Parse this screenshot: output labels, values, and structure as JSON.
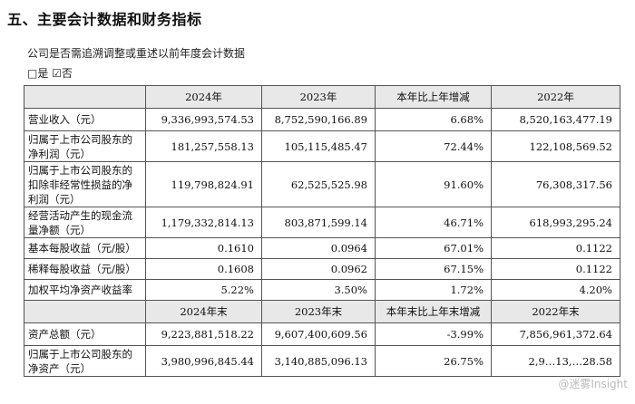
{
  "heading": "五、主要会计数据和财务指标",
  "question": "公司是否需追溯调整或重述以前年度会计数据",
  "answer": "□是 ☑否",
  "table1": {
    "headers": [
      "",
      "2024年",
      "2023年",
      "本年比上年增减",
      "2022年"
    ],
    "rows": [
      {
        "label": "营业收入（元）",
        "v2024": "9,336,993,574.53",
        "v2023": "8,752,590,166.89",
        "change": "6.68%",
        "v2022": "8,520,163,477.19"
      },
      {
        "label": "归属于上市公司股东的净利润（元）",
        "v2024": "181,257,558.13",
        "v2023": "105,115,485.47",
        "change": "72.44%",
        "v2022": "122,108,569.52"
      },
      {
        "label": "归属于上市公司股东的扣除非经常性损益的净利润（元）",
        "v2024": "119,798,824.91",
        "v2023": "62,525,525.98",
        "change": "91.60%",
        "v2022": "76,308,317.56"
      },
      {
        "label": "经营活动产生的现金流量净额（元）",
        "v2024": "1,179,332,814.13",
        "v2023": "803,871,599.14",
        "change": "46.71%",
        "v2022": "618,993,295.24"
      },
      {
        "label": "基本每股收益（元/股）",
        "v2024": "0.1610",
        "v2023": "0.0964",
        "change": "67.01%",
        "v2022": "0.1122"
      },
      {
        "label": "稀释每股收益（元/股）",
        "v2024": "0.1608",
        "v2023": "0.0962",
        "change": "67.15%",
        "v2022": "0.1122"
      },
      {
        "label": "加权平均净资产收益率",
        "v2024": "5.22%",
        "v2023": "3.50%",
        "change": "1.72%",
        "v2022": "4.20%"
      }
    ]
  },
  "table2": {
    "headers": [
      "",
      "2024年末",
      "2023年末",
      "本年末比上年末增减",
      "2022年末"
    ],
    "rows": [
      {
        "label": "资产总额（元）",
        "v2024": "9,223,881,518.22",
        "v2023": "9,607,400,609.56",
        "change": "-3.99%",
        "v2022": "7,856,961,372.64"
      },
      {
        "label": "归属于上市公司股东的净资产（元）",
        "v2024": "3,980,996,845.44",
        "v2023": "3,140,885,096.13",
        "change": "26.75%",
        "v2022": "2,9…13,…28.58"
      }
    ]
  },
  "watermark": "@迷雾Insight"
}
